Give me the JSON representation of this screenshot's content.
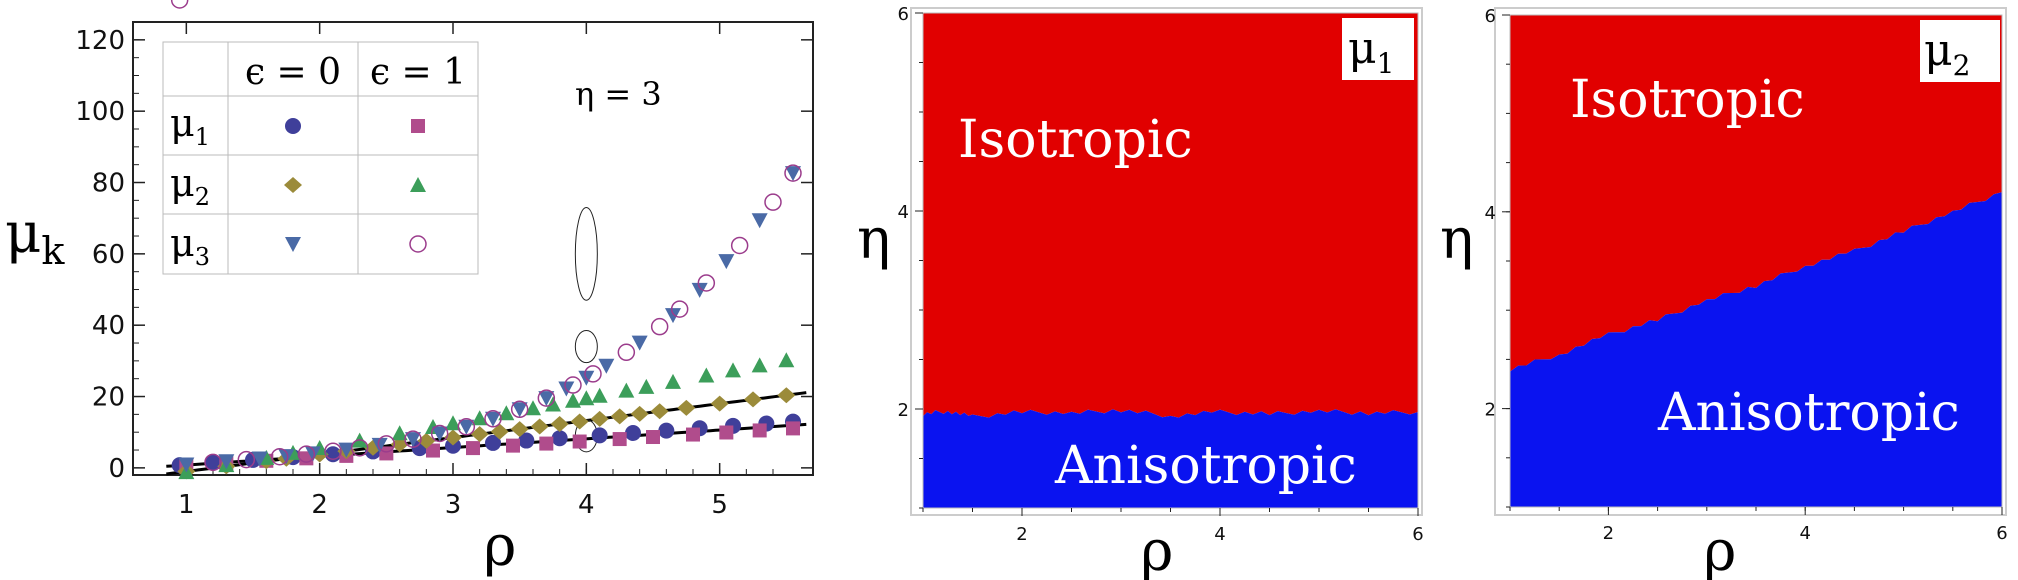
{
  "colors": {
    "mu1_eps0": "#3f3f9a",
    "mu1_eps1": "#b04c8c",
    "mu2_eps0": "#9b8b3a",
    "mu2_eps1": "#3c9e5a",
    "mu3_eps0": "#4a6aa6",
    "mu3_eps1": "#9b3c8c",
    "isotropic": "#e10000",
    "anisotropic": "#0a13f0"
  },
  "chart_data": [
    {
      "type": "scatter",
      "title": "",
      "xlabel": "ρ",
      "ylabel": "μ",
      "ylabel_sub": "k",
      "xlim": [
        0.6,
        5.7
      ],
      "ylim": [
        -2,
        125
      ],
      "x_ticks": [
        "1",
        "2",
        "3",
        "4",
        "5"
      ],
      "y_ticks": [
        "0",
        "20",
        "40",
        "60",
        "80",
        "100",
        "120"
      ],
      "annotation": "η = 3",
      "legend": {
        "headers": [
          "ϵ = 0",
          "ϵ = 1"
        ],
        "rows": [
          {
            "label": "μ",
            "sub": "1"
          },
          {
            "label": "μ",
            "sub": "2"
          },
          {
            "label": "μ",
            "sub": "3"
          }
        ]
      },
      "fits": [
        {
          "name": "μ3",
          "coef": [
            0.95,
            3.0,
            0.3,
            3.58
          ]
        },
        {
          "name": "μ2",
          "coef": [
            -1.0,
            3.7,
            1.05,
            1.0
          ]
        },
        {
          "name": "μ2_eps1",
          "coef": [
            -1.2,
            5.7,
            1.06,
            1.12
          ]
        },
        {
          "name": "μ1",
          "coef": [
            0.8,
            2.45,
            0.0,
            1.0
          ]
        }
      ],
      "series": [
        {
          "name": "μ1, ϵ=0",
          "marker": "circle",
          "coef": [
            0.9,
            2.65,
            0.0,
            1.0
          ],
          "x": [
            0.95,
            1.2,
            1.5,
            1.8,
            2.1,
            2.4,
            2.75,
            3.0,
            3.3,
            3.55,
            3.8,
            4.1,
            4.35,
            4.6,
            4.85,
            5.1,
            5.35,
            5.55
          ]
        },
        {
          "name": "μ1, ϵ=1",
          "marker": "square",
          "coef": [
            0.6,
            2.3,
            0.0,
            1.0
          ],
          "x": [
            1.0,
            1.3,
            1.6,
            1.9,
            2.2,
            2.5,
            2.85,
            3.15,
            3.45,
            3.7,
            3.95,
            4.25,
            4.5,
            4.8,
            5.05,
            5.3,
            5.55
          ]
        },
        {
          "name": "μ2, ϵ=0",
          "marker": "diamond",
          "coef": [
            -1.0,
            3.7,
            1.05,
            1.0
          ],
          "x": [
            1.0,
            1.3,
            1.6,
            1.75,
            2.0,
            2.2,
            2.4,
            2.6,
            2.8,
            3.0,
            3.2,
            3.35,
            3.5,
            3.65,
            3.8,
            3.95,
            4.1,
            4.25,
            4.4,
            4.55,
            4.75,
            5.0,
            5.25,
            5.5
          ]
        },
        {
          "name": "μ2, ϵ=1",
          "marker": "triangle-up",
          "coef": [
            -1.2,
            5.7,
            1.06,
            1.12
          ],
          "x": [
            1.0,
            1.3,
            1.6,
            1.8,
            2.0,
            2.3,
            2.6,
            2.85,
            3.0,
            3.2,
            3.4,
            3.6,
            3.75,
            3.9,
            4.0,
            4.1,
            4.3,
            4.45,
            4.65,
            4.9,
            5.1,
            5.3,
            5.5
          ]
        },
        {
          "name": "μ3, ϵ=0",
          "marker": "triangle-down",
          "coef": [
            0.95,
            3.0,
            0.3,
            3.58
          ],
          "x": [
            1.0,
            1.3,
            1.55,
            1.75,
            1.95,
            2.2,
            2.45,
            2.7,
            2.9,
            3.1,
            3.3,
            3.5,
            3.7,
            3.85,
            4.0,
            4.15,
            4.4,
            4.65,
            4.85,
            5.05,
            5.3,
            5.55
          ]
        },
        {
          "name": "μ3, ϵ=1",
          "marker": "open-circle",
          "coef": [
            0.95,
            3.0,
            0.3,
            3.58
          ],
          "x": [
            0.95,
            1.2,
            1.45,
            1.7,
            1.9,
            2.1,
            2.3,
            2.5,
            2.7,
            2.9,
            3.1,
            3.3,
            3.5,
            3.7,
            3.9,
            4.05,
            4.3,
            4.55,
            4.7,
            4.9,
            5.15,
            5.4,
            5.55
          ]
        }
      ],
      "highlight_ellipses": [
        {
          "x": 4.0,
          "y": 60,
          "ry": 13
        },
        {
          "x": 4.0,
          "y": 34,
          "ry": 4.5
        },
        {
          "x": 4.0,
          "y": 9,
          "ry": 4.5
        }
      ]
    },
    {
      "type": "region",
      "xlabel": "ρ",
      "ylabel": "η",
      "panel_label": "μ",
      "panel_label_sub": "1",
      "xlim": [
        1,
        6
      ],
      "ylim": [
        1,
        6
      ],
      "x_ticks": [
        "2",
        "4",
        "6"
      ],
      "y_ticks": [
        "2",
        "4",
        "6"
      ],
      "boundary_x": [
        1.0,
        1.25,
        1.5,
        2.0,
        2.5,
        3.0,
        3.5,
        4.0,
        4.5,
        5.0,
        5.5,
        6.0
      ],
      "boundary_y": [
        1.95,
        1.98,
        1.92,
        1.97,
        1.96,
        1.99,
        1.93,
        1.97,
        1.95,
        1.98,
        1.96,
        1.97
      ],
      "region_labels": {
        "upper": "Isotropic",
        "lower": "Anisotropic"
      }
    },
    {
      "type": "region",
      "xlabel": "ρ",
      "ylabel": "η",
      "panel_label": "μ",
      "panel_label_sub": "2",
      "xlim": [
        1,
        6
      ],
      "ylim": [
        1,
        6
      ],
      "x_ticks": [
        "2",
        "4",
        "6"
      ],
      "y_ticks": [
        "2",
        "4",
        "6"
      ],
      "boundary_x": [
        1.0,
        1.5,
        2.0,
        2.5,
        3.0,
        3.5,
        4.0,
        4.5,
        5.0,
        5.5,
        6.0
      ],
      "boundary_y": [
        2.4,
        2.55,
        2.75,
        2.9,
        3.1,
        3.25,
        3.45,
        3.6,
        3.8,
        4.0,
        4.2
      ],
      "region_labels": {
        "upper": "Isotropic",
        "lower": "Anisotropic"
      }
    }
  ]
}
